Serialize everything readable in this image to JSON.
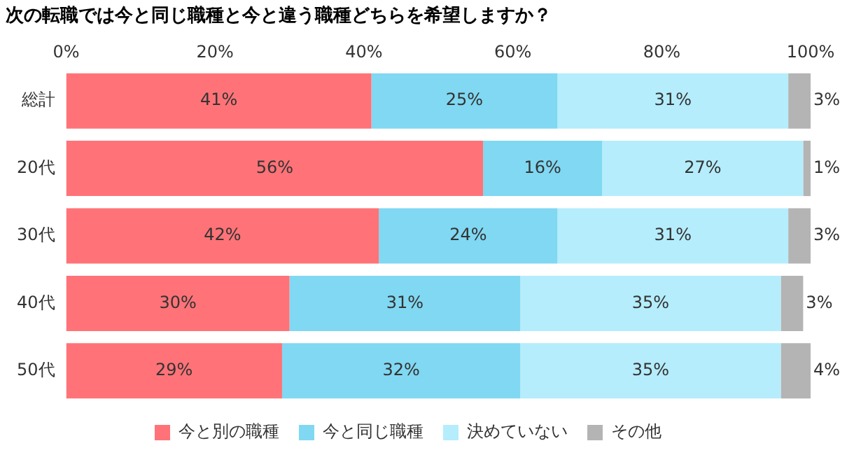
{
  "chart_data": {
    "type": "bar",
    "orientation": "horizontal",
    "stacked": true,
    "title": "次の転職では今と同じ職種と今と違う職種どちらを希望しますか？",
    "categories": [
      "総計",
      "20代",
      "30代",
      "40代",
      "50代"
    ],
    "series": [
      {
        "name": "今と別の職種",
        "color": "#ff7378",
        "values": [
          41,
          56,
          42,
          30,
          29
        ],
        "value_labels": [
          "41%",
          "56%",
          "42%",
          "30%",
          "29%"
        ]
      },
      {
        "name": "今と同じ職種",
        "color": "#80d8f2",
        "values": [
          25,
          16,
          24,
          31,
          32
        ],
        "value_labels": [
          "25%",
          "16%",
          "24%",
          "31%",
          "32%"
        ]
      },
      {
        "name": "決めていない",
        "color": "#b5edfc",
        "values": [
          31,
          27,
          31,
          35,
          35
        ],
        "value_labels": [
          "31%",
          "27%",
          "31%",
          "35%",
          "35%"
        ]
      },
      {
        "name": "その他",
        "color": "#b4b4b4",
        "values": [
          3,
          1,
          3,
          3,
          4
        ],
        "value_labels": [
          "3%",
          "1%",
          "3%",
          "3%",
          "4%"
        ]
      }
    ],
    "xlim": [
      0,
      100
    ],
    "xticks": [
      {
        "value": 0,
        "label": "0%"
      },
      {
        "value": 20,
        "label": "20%"
      },
      {
        "value": 40,
        "label": "40%"
      },
      {
        "value": 60,
        "label": "60%"
      },
      {
        "value": 80,
        "label": "80%"
      },
      {
        "value": 100,
        "label": "100%"
      }
    ],
    "legend": "bottom",
    "grid": false
  }
}
